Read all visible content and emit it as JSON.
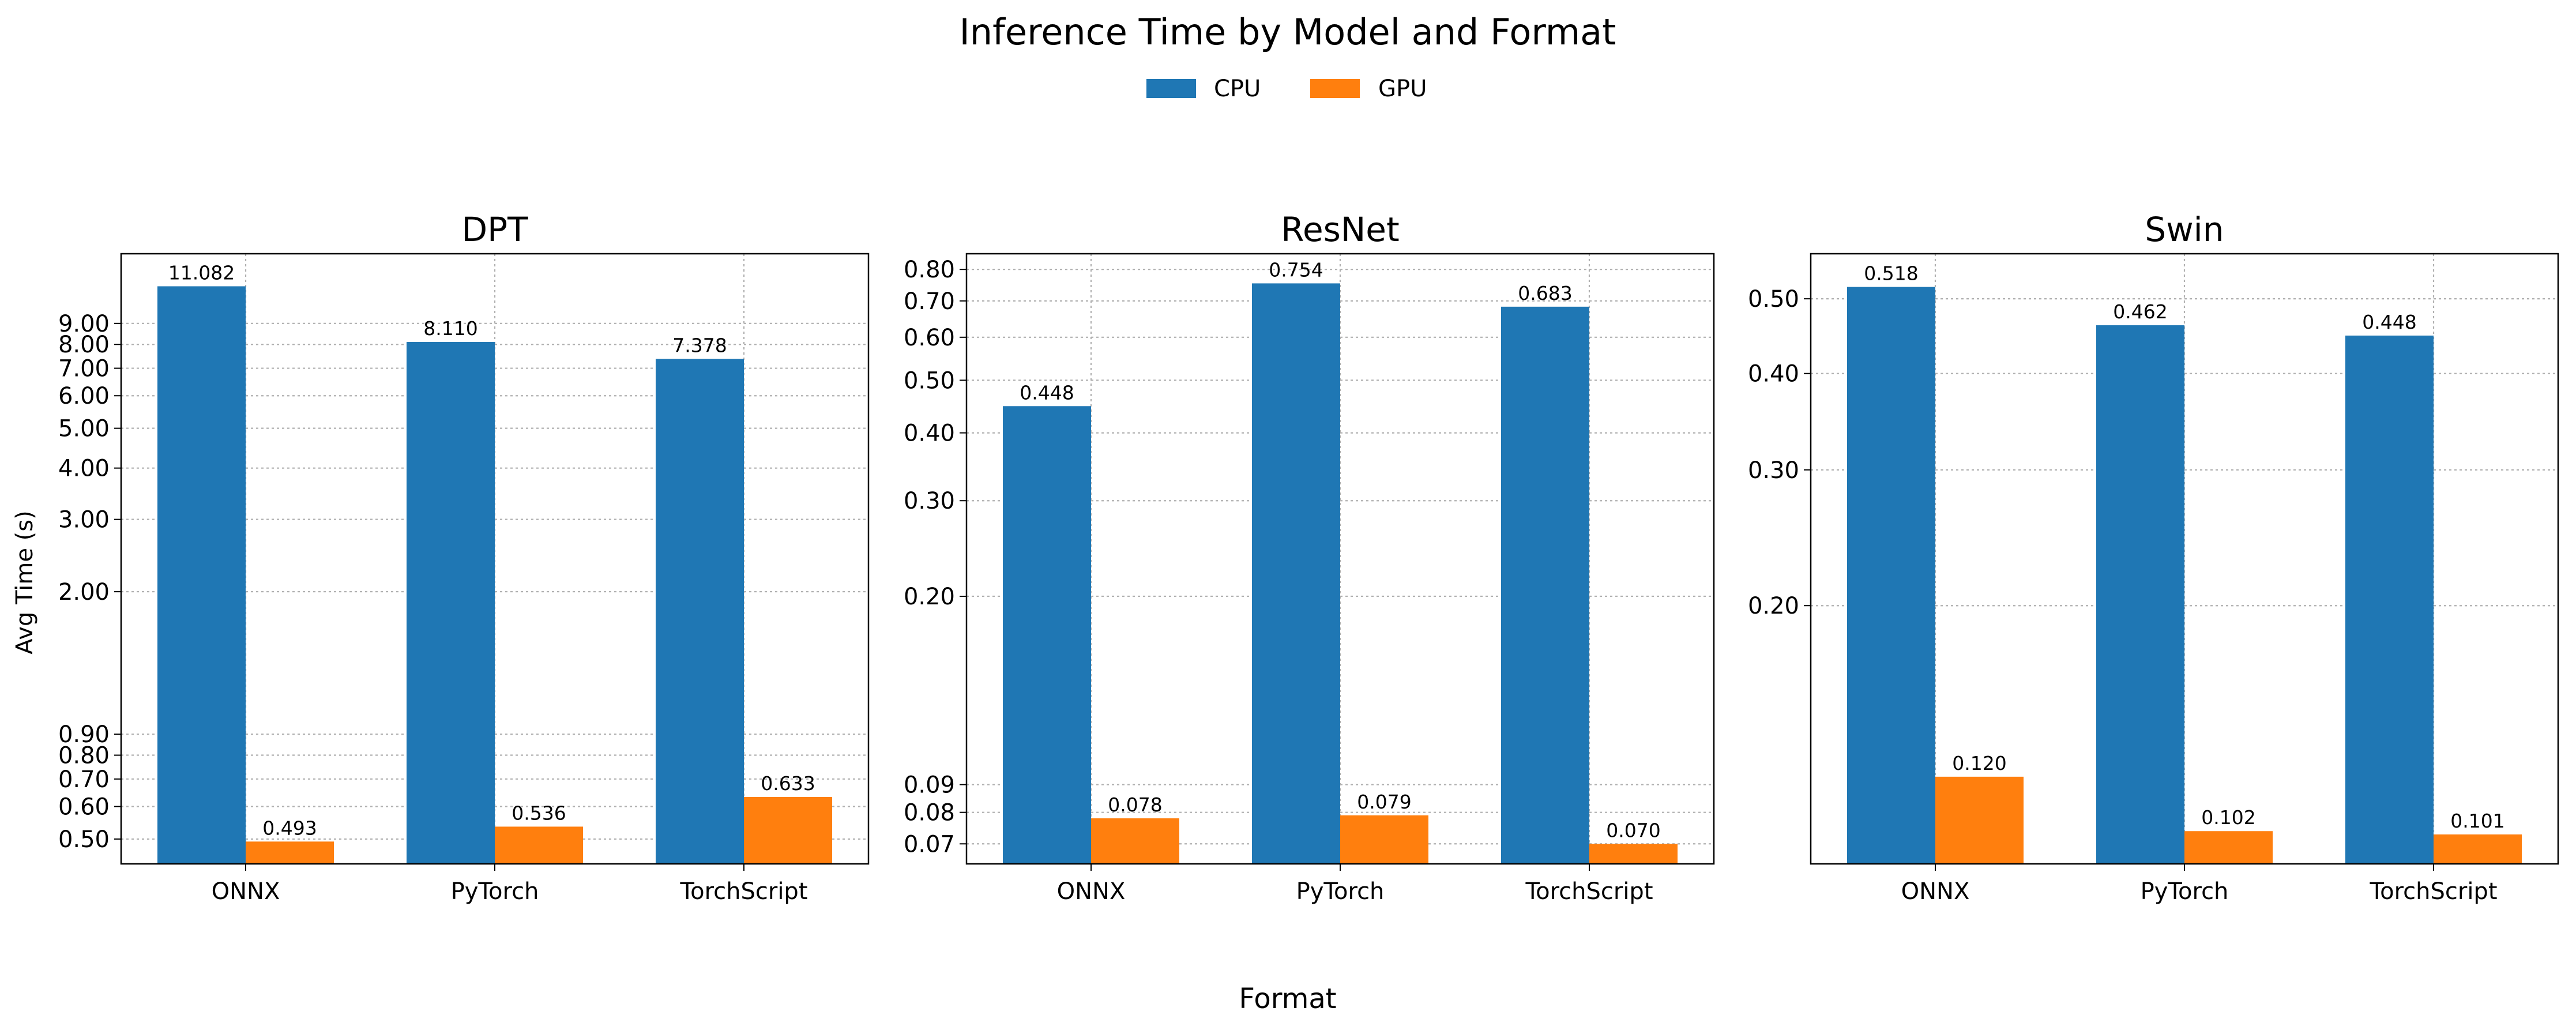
{
  "title": "Inference Time by Model and Format",
  "legend": {
    "placement": "top-center",
    "items": [
      {
        "label": "CPU",
        "color": "#1f77b4"
      },
      {
        "label": "GPU",
        "color": "#ff7f0e"
      }
    ]
  },
  "xlabel": "Format",
  "ylabel": "Avg Time (s)",
  "chart_data": [
    {
      "type": "bar",
      "title": "DPT",
      "scale": "log",
      "grid": true,
      "ylim": [
        0.435,
        13.3
      ],
      "yticks": [
        {
          "value": 0.5,
          "label": "0.50"
        },
        {
          "value": 0.6,
          "label": "0.60"
        },
        {
          "value": 0.7,
          "label": "0.70"
        },
        {
          "value": 0.8,
          "label": "0.80"
        },
        {
          "value": 0.9,
          "label": "0.90"
        },
        {
          "value": 2,
          "label": "2.00"
        },
        {
          "value": 3,
          "label": "3.00"
        },
        {
          "value": 4,
          "label": "4.00"
        },
        {
          "value": 5,
          "label": "5.00"
        },
        {
          "value": 6,
          "label": "6.00"
        },
        {
          "value": 7,
          "label": "7.00"
        },
        {
          "value": 8,
          "label": "8.00"
        },
        {
          "value": 9,
          "label": "9.00"
        }
      ],
      "categories": [
        "ONNX",
        "PyTorch",
        "TorchScript"
      ],
      "series": [
        {
          "name": "CPU",
          "values": [
            11.082,
            8.11,
            7.378
          ],
          "labels": [
            "11.082",
            "8.110",
            "7.378"
          ]
        },
        {
          "name": "GPU",
          "values": [
            0.493,
            0.536,
            0.633
          ],
          "labels": [
            "0.493",
            "0.536",
            "0.633"
          ]
        }
      ]
    },
    {
      "type": "bar",
      "title": "ResNet",
      "scale": "log",
      "grid": true,
      "ylim": [
        0.0643,
        0.855
      ],
      "yticks": [
        {
          "value": 0.07,
          "label": "0.07"
        },
        {
          "value": 0.08,
          "label": "0.08"
        },
        {
          "value": 0.09,
          "label": "0.09"
        },
        {
          "value": 0.2,
          "label": "0.20"
        },
        {
          "value": 0.3,
          "label": "0.30"
        },
        {
          "value": 0.4,
          "label": "0.40"
        },
        {
          "value": 0.5,
          "label": "0.50"
        },
        {
          "value": 0.6,
          "label": "0.60"
        },
        {
          "value": 0.7,
          "label": "0.70"
        },
        {
          "value": 0.8,
          "label": "0.80"
        }
      ],
      "categories": [
        "ONNX",
        "PyTorch",
        "TorchScript"
      ],
      "series": [
        {
          "name": "CPU",
          "values": [
            0.448,
            0.754,
            0.683
          ],
          "labels": [
            "0.448",
            "0.754",
            "0.683"
          ]
        },
        {
          "name": "GPU",
          "values": [
            0.078,
            0.079,
            0.07
          ],
          "labels": [
            "0.078",
            "0.079",
            "0.070"
          ]
        }
      ]
    },
    {
      "type": "bar",
      "title": "Swin",
      "scale": "log",
      "grid": true,
      "ylim": [
        0.0925,
        0.572
      ],
      "yticks": [
        {
          "value": 0.2,
          "label": "0.20"
        },
        {
          "value": 0.3,
          "label": "0.30"
        },
        {
          "value": 0.4,
          "label": "0.40"
        },
        {
          "value": 0.5,
          "label": "0.50"
        }
      ],
      "categories": [
        "ONNX",
        "PyTorch",
        "TorchScript"
      ],
      "series": [
        {
          "name": "CPU",
          "values": [
            0.518,
            0.462,
            0.448
          ],
          "labels": [
            "0.518",
            "0.462",
            "0.448"
          ]
        },
        {
          "name": "GPU",
          "values": [
            0.12,
            0.102,
            0.101
          ],
          "labels": [
            "0.120",
            "0.102",
            "0.101"
          ]
        }
      ]
    }
  ]
}
